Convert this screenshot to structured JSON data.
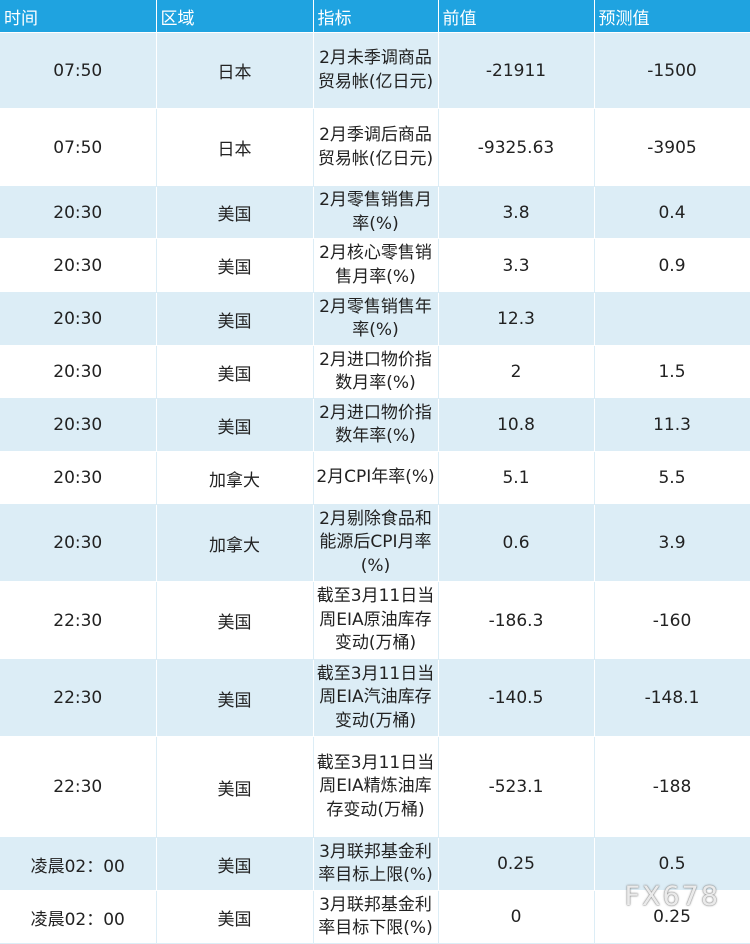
{
  "headers": {
    "time": "时间",
    "region": "区域",
    "indicator": "指标",
    "previous": "前值",
    "forecast": "预测值"
  },
  "rows": [
    {
      "time": "07:50",
      "region": "日本",
      "indicator": "2月未季调商品贸易帐(亿日元)",
      "previous": "-21911",
      "forecast": "-1500"
    },
    {
      "time": "07:50",
      "region": "日本",
      "indicator": "2月季调后商品贸易帐(亿日元)",
      "previous": "-9325.63",
      "forecast": "-3905"
    },
    {
      "time": "20:30",
      "region": "美国",
      "indicator": "2月零售销售月率(%)",
      "previous": "3.8",
      "forecast": "0.4"
    },
    {
      "time": "20:30",
      "region": "美国",
      "indicator": "2月核心零售销售月率(%)",
      "previous": "3.3",
      "forecast": "0.9"
    },
    {
      "time": "20:30",
      "region": "美国",
      "indicator": "2月零售销售年率(%)",
      "previous": "12.3",
      "forecast": ""
    },
    {
      "time": "20:30",
      "region": "美国",
      "indicator": "2月进口物价指数月率(%)",
      "previous": "2",
      "forecast": "1.5"
    },
    {
      "time": "20:30",
      "region": "美国",
      "indicator": "2月进口物价指数年率(%)",
      "previous": "10.8",
      "forecast": "11.3"
    },
    {
      "time": "20:30",
      "region": "加拿大",
      "indicator": "2月CPI年率(%)",
      "previous": "5.1",
      "forecast": "5.5"
    },
    {
      "time": "20:30",
      "region": "加拿大",
      "indicator": "2月剔除食品和能源后CPI月率(%)",
      "previous": "0.6",
      "forecast": "3.9"
    },
    {
      "time": "22:30",
      "region": "美国",
      "indicator": "截至3月11日当周EIA原油库存变动(万桶)",
      "previous": "-186.3",
      "forecast": "-160"
    },
    {
      "time": "22:30",
      "region": "美国",
      "indicator": "截至3月11日当周EIA汽油库存变动(万桶)",
      "previous": "-140.5",
      "forecast": "-148.1"
    },
    {
      "time": "22:30",
      "region": "美国",
      "indicator": "截至3月11日当周EIA精炼油库存变动(万桶)",
      "previous": "-523.1",
      "forecast": "-188"
    },
    {
      "time": "凌晨02：00",
      "region": "美国",
      "indicator": "3月联邦基金利率目标上限(%)",
      "previous": "0.25",
      "forecast": "0.5"
    },
    {
      "time": "凌晨02：00",
      "region": "美国",
      "indicator": "3月联邦基金利率目标下限(%)",
      "previous": "0",
      "forecast": "0.25"
    }
  ],
  "watermark": "FX678"
}
